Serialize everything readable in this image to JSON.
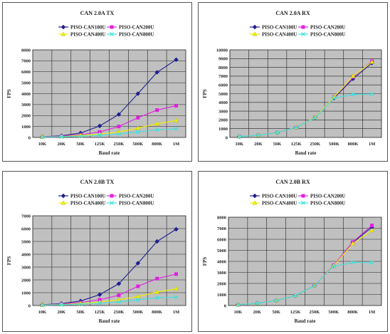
{
  "chart_data": [
    {
      "type": "line",
      "title": "CAN 2.0A TX",
      "xlabel": "Baud rate",
      "ylabel": "FPS",
      "categories": [
        "10K",
        "20K",
        "50K",
        "125K",
        "250K",
        "500K",
        "800K",
        "1M"
      ],
      "ylim": [
        0,
        8000
      ],
      "yticks": [
        0,
        1000,
        2000,
        3000,
        4000,
        5000,
        6000,
        7000,
        8000
      ],
      "grid": true,
      "legend": "top",
      "series": [
        {
          "name": "PISO-CAN100U",
          "color": "#1f1f8f",
          "marker": "diamond",
          "values": [
            60,
            150,
            400,
            1050,
            2100,
            4000,
            5950,
            7100
          ]
        },
        {
          "name": "PISO-CAN200U",
          "color": "#e020e0",
          "marker": "square",
          "values": [
            50,
            110,
            250,
            500,
            1000,
            1800,
            2500,
            2900
          ]
        },
        {
          "name": "PISO-CAN400U",
          "color": "#f0f000",
          "marker": "triangle",
          "values": [
            40,
            80,
            180,
            300,
            500,
            850,
            1250,
            1550
          ]
        },
        {
          "name": "PISO-CAN800U",
          "color": "#40e0e0",
          "marker": "x",
          "values": [
            30,
            60,
            120,
            200,
            320,
            500,
            700,
            800
          ]
        }
      ]
    },
    {
      "type": "line",
      "title": "CAN 2.0A RX",
      "xlabel": "Baud rate",
      "ylabel": "FPS",
      "categories": [
        "10K",
        "20K",
        "50K",
        "125K",
        "250K",
        "500K",
        "800K",
        "1M"
      ],
      "ylim": [
        0,
        10000
      ],
      "yticks": [
        0,
        1000,
        2000,
        3000,
        4000,
        5000,
        6000,
        7000,
        8000,
        9000,
        10000
      ],
      "grid": true,
      "legend": "top",
      "series": [
        {
          "name": "PISO-CAN100U",
          "color": "#1f1f8f",
          "marker": "diamond",
          "values": [
            100,
            250,
            550,
            1150,
            2300,
            4500,
            6700,
            8500
          ]
        },
        {
          "name": "PISO-CAN200U",
          "color": "#e020e0",
          "marker": "square",
          "values": [
            100,
            250,
            550,
            1150,
            2300,
            4600,
            6900,
            8700
          ]
        },
        {
          "name": "PISO-CAN400U",
          "color": "#f0f000",
          "marker": "triangle",
          "values": [
            100,
            250,
            550,
            1150,
            2300,
            4600,
            7000,
            8600
          ]
        },
        {
          "name": "PISO-CAN800U",
          "color": "#40e0e0",
          "marker": "x",
          "values": [
            100,
            250,
            550,
            1150,
            2250,
            4500,
            4900,
            4950
          ]
        }
      ]
    },
    {
      "type": "line",
      "title": "CAN 2.0B TX",
      "xlabel": "Baud rate",
      "ylabel": "FPS",
      "categories": [
        "10K",
        "20K",
        "50K",
        "125K",
        "250K",
        "500K",
        "800K",
        "1M"
      ],
      "ylim": [
        0,
        7000
      ],
      "yticks": [
        0,
        1000,
        2000,
        3000,
        4000,
        5000,
        6000,
        7000
      ],
      "grid": true,
      "legend": "top",
      "series": [
        {
          "name": "PISO-CAN100U",
          "color": "#1f1f8f",
          "marker": "diamond",
          "values": [
            60,
            150,
            350,
            850,
            1700,
            3300,
            5000,
            5950
          ]
        },
        {
          "name": "PISO-CAN200U",
          "color": "#e020e0",
          "marker": "square",
          "values": [
            50,
            110,
            230,
            450,
            800,
            1500,
            2100,
            2450
          ]
        },
        {
          "name": "PISO-CAN400U",
          "color": "#f0f000",
          "marker": "triangle",
          "values": [
            40,
            80,
            160,
            260,
            450,
            700,
            1050,
            1300
          ]
        },
        {
          "name": "PISO-CAN800U",
          "color": "#40e0e0",
          "marker": "x",
          "values": [
            30,
            60,
            110,
            180,
            280,
            450,
            600,
            650
          ]
        }
      ]
    },
    {
      "type": "line",
      "title": "CAN 2.0B RX",
      "xlabel": "Baud rate",
      "ylabel": "FPS",
      "categories": [
        "10K",
        "20K",
        "50K",
        "125K",
        "250K",
        "500K",
        "800K",
        "1M"
      ],
      "ylim": [
        0,
        8000
      ],
      "yticks": [
        0,
        1000,
        2000,
        3000,
        4000,
        5000,
        6000,
        7000,
        8000
      ],
      "grid": true,
      "legend": "top",
      "series": [
        {
          "name": "PISO-CAN100U",
          "color": "#1f1f8f",
          "marker": "diamond",
          "values": [
            80,
            200,
            450,
            900,
            1800,
            3600,
            5700,
            7100
          ]
        },
        {
          "name": "PISO-CAN200U",
          "color": "#e020e0",
          "marker": "square",
          "values": [
            80,
            200,
            450,
            900,
            1800,
            3650,
            5750,
            7250
          ]
        },
        {
          "name": "PISO-CAN400U",
          "color": "#f0f000",
          "marker": "triangle",
          "values": [
            80,
            200,
            450,
            900,
            1800,
            3600,
            5600,
            6800
          ]
        },
        {
          "name": "PISO-CAN800U",
          "color": "#40e0e0",
          "marker": "x",
          "values": [
            80,
            200,
            450,
            900,
            1800,
            3550,
            3900,
            3900
          ]
        }
      ]
    }
  ]
}
